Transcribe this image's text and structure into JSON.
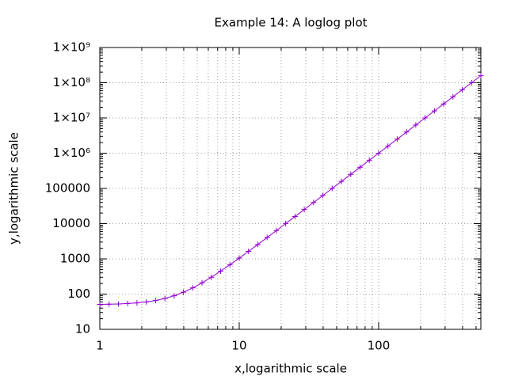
{
  "chart_data": {
    "type": "line",
    "title": "Example 14: A loglog plot",
    "x_label": "x,logarithmic scale",
    "y_label": "y,logarithmic scale",
    "x": [
      1,
      1.166,
      1.359,
      1.585,
      1.848,
      2.154,
      2.512,
      2.929,
      3.415,
      3.981,
      4.642,
      5.412,
      6.31,
      7.356,
      8.577,
      10,
      11.66,
      13.59,
      15.85,
      18.48,
      21.54,
      25.12,
      29.29,
      34.15,
      39.81,
      46.42,
      54.12,
      63.1,
      73.56,
      85.77,
      100,
      116.6,
      135.9,
      158.5,
      184.8,
      215.4,
      251.2,
      292.9,
      341.5,
      398.1,
      464.2,
      541.2
    ],
    "series": [
      {
        "color": "#9400d3",
        "marker": "+",
        "values": [
          51,
          51.585,
          52.512,
          53.981,
          56.31,
          60,
          65.85,
          75.12,
          89.81,
          113.1,
          150,
          208.5,
          301.2,
          448.1,
          681,
          1050,
          1635,
          2562,
          4031,
          6360,
          10050,
          15899,
          25169,
          39861,
          63146,
          100050,
          158539,
          251239,
          398157,
          631006,
          1000050,
          1584943,
          2511936,
          3981122,
          6309623,
          10000050,
          15848982,
          25118914,
          39810767,
          63095784,
          100000050,
          158489369
        ]
      }
    ],
    "xlim": [
      1,
      541.2
    ],
    "ylim": [
      10,
      1000000000
    ],
    "xticks": [
      1,
      10,
      100
    ],
    "yticks": [
      10,
      100,
      1000,
      10000,
      100000,
      {
        "value": 1000000,
        "label": "1×10⁶"
      },
      {
        "value": 10000000,
        "label": "1×10⁷"
      },
      {
        "value": 100000000,
        "label": "1×10⁸"
      },
      {
        "value": 1000000000,
        "label": "1×10⁹"
      }
    ],
    "xlog": true,
    "ylog": true,
    "grid": true,
    "minor_grid": true
  }
}
